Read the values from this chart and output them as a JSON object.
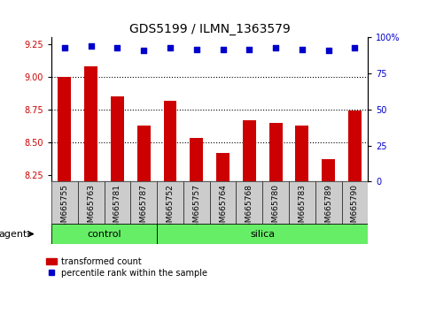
{
  "title": "GDS5199 / ILMN_1363579",
  "samples": [
    "GSM665755",
    "GSM665763",
    "GSM665781",
    "GSM665787",
    "GSM665752",
    "GSM665757",
    "GSM665764",
    "GSM665768",
    "GSM665780",
    "GSM665783",
    "GSM665789",
    "GSM665790"
  ],
  "bar_values": [
    9.0,
    9.08,
    8.85,
    8.63,
    8.82,
    8.53,
    8.42,
    8.67,
    8.65,
    8.63,
    8.37,
    8.74
  ],
  "percentile_values": [
    93,
    94,
    93,
    91,
    93,
    92,
    92,
    92,
    93,
    92,
    91,
    93
  ],
  "bar_color": "#cc0000",
  "dot_color": "#0000cc",
  "ylim_left": [
    8.2,
    9.3
  ],
  "ylim_right": [
    0,
    100
  ],
  "yticks_left": [
    8.25,
    8.5,
    8.75,
    9.0,
    9.25
  ],
  "yticks_right": [
    0,
    25,
    50,
    75,
    100
  ],
  "ytick_labels_right": [
    "0",
    "25",
    "50",
    "75",
    "100%"
  ],
  "grid_values": [
    9.0,
    8.75,
    8.5
  ],
  "n_control": 4,
  "n_silica": 8,
  "control_label": "control",
  "silica_label": "silica",
  "agent_label": "agent",
  "legend_bar_label": "transformed count",
  "legend_dot_label": "percentile rank within the sample",
  "control_color": "#66ee66",
  "silica_color": "#66ee66",
  "xtick_bg_color": "#cccccc",
  "bar_width": 0.5,
  "plot_bg_color": "#ffffff",
  "title_fontsize": 10,
  "tick_fontsize": 7,
  "label_fontsize": 8,
  "bar_bottom": 8.2
}
